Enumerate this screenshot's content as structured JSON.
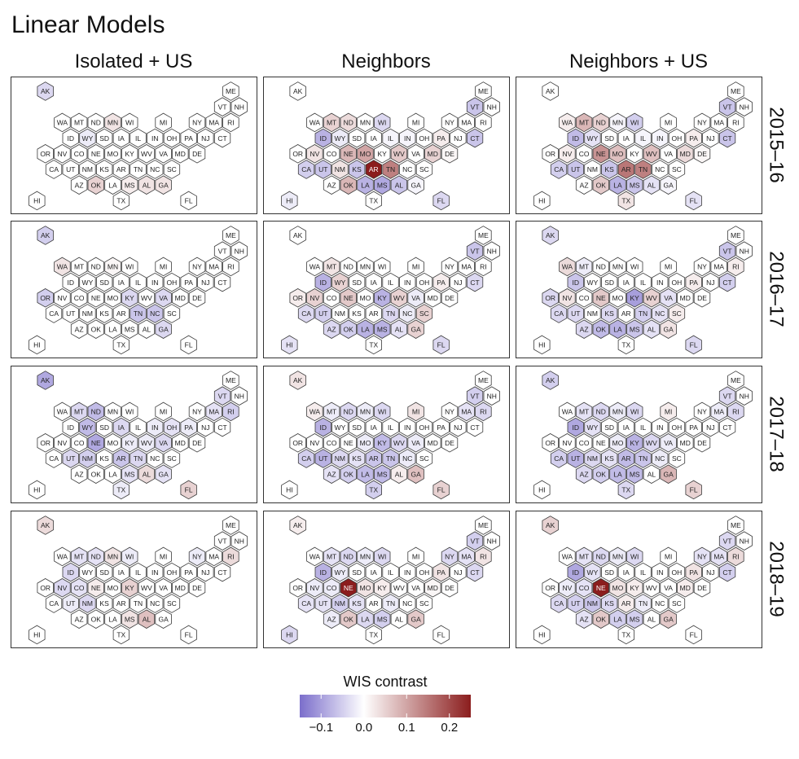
{
  "chart_data": {
    "type": "heatmap",
    "subtype": "hexagonal tile grid map of US states, faceted",
    "title": "Linear Models",
    "columns": [
      "Isolated + US",
      "Neighbors",
      "Neighbors + US"
    ],
    "rows": [
      "2015–16",
      "2016–17",
      "2017–18",
      "2018–19"
    ],
    "legend": {
      "title": "WIS contrast",
      "range": [
        -0.15,
        0.25
      ],
      "ticks": [
        -0.1,
        0.0,
        0.1,
        0.2
      ],
      "tick_labels": [
        "−0.1",
        "0.0",
        "0.1",
        "0.2"
      ],
      "low_color": "#7b6ecb",
      "mid_color": "#ffffff",
      "high_color": "#8b1d1d",
      "placement": "bottom-center"
    },
    "states": [
      "AK",
      "ME",
      "VT",
      "NH",
      "WA",
      "MT",
      "ND",
      "MN",
      "WI",
      "MI",
      "NY",
      "MA",
      "RI",
      "ID",
      "WY",
      "SD",
      "IA",
      "IL",
      "IN",
      "OH",
      "PA",
      "NJ",
      "CT",
      "OR",
      "NV",
      "CO",
      "NE",
      "MO",
      "KY",
      "WV",
      "VA",
      "MD",
      "DE",
      "CA",
      "UT",
      "NM",
      "KS",
      "AR",
      "TN",
      "NC",
      "SC",
      "AZ",
      "OK",
      "LA",
      "MS",
      "AL",
      "GA",
      "HI",
      "TX",
      "FL"
    ],
    "panels": [
      {
        "season": "2015–16",
        "model": "Isolated + US",
        "values": {
          "AK": -0.04,
          "ME": 0,
          "VT": 0,
          "NH": 0,
          "WA": 0,
          "MT": 0,
          "ND": 0,
          "MN": 0.03,
          "WI": 0,
          "MI": 0,
          "NY": 0,
          "MA": 0,
          "RI": 0,
          "ID": 0,
          "WY": -0.02,
          "SD": 0,
          "IA": 0,
          "IL": 0,
          "IN": 0,
          "OH": 0,
          "PA": 0,
          "NJ": 0,
          "CT": 0,
          "OR": 0,
          "NV": 0,
          "CO": 0,
          "NE": 0,
          "MO": 0,
          "KY": 0,
          "WV": 0,
          "VA": 0,
          "MD": 0,
          "DE": 0,
          "CA": 0,
          "UT": 0,
          "NM": 0,
          "KS": 0,
          "AR": 0,
          "TN": 0,
          "NC": 0,
          "SC": 0,
          "AZ": 0,
          "OK": 0.05,
          "LA": 0,
          "MS": 0.02,
          "AL": 0.03,
          "GA": 0.03,
          "HI": 0,
          "TX": 0,
          "FL": 0
        }
      },
      {
        "season": "2015–16",
        "model": "Neighbors",
        "values": {
          "AK": 0,
          "ME": 0,
          "VT": -0.06,
          "NH": 0,
          "WA": 0,
          "MT": 0.05,
          "ND": 0.04,
          "MN": 0,
          "WI": -0.04,
          "MI": 0,
          "NY": 0,
          "MA": 0,
          "RI": 0,
          "ID": -0.08,
          "WY": -0.02,
          "SD": 0,
          "IA": 0,
          "IL": -0.01,
          "IN": -0.01,
          "OH": 0,
          "PA": 0.02,
          "NJ": 0,
          "CT": -0.06,
          "OR": 0,
          "NV": 0.03,
          "CO": 0,
          "NE": 0.08,
          "MO": 0.1,
          "KY": 0,
          "WV": 0.06,
          "VA": 0,
          "MD": 0.05,
          "DE": 0.01,
          "CA": -0.05,
          "UT": -0.06,
          "NM": 0.03,
          "KS": -0.06,
          "AR": 0.25,
          "TN": 0.14,
          "NC": 0,
          "SC": 0,
          "AZ": 0,
          "OK": 0.08,
          "LA": -0.08,
          "MS": -0.09,
          "AL": -0.06,
          "GA": -0.01,
          "HI": -0.02,
          "TX": 0,
          "FL": -0.04
        }
      },
      {
        "season": "2015–16",
        "model": "Neighbors + US",
        "values": {
          "AK": 0,
          "ME": 0,
          "VT": -0.06,
          "NH": 0,
          "WA": 0.02,
          "MT": 0.08,
          "ND": 0.05,
          "MN": -0.01,
          "WI": -0.05,
          "MI": 0,
          "NY": 0,
          "MA": 0,
          "RI": 0,
          "ID": -0.07,
          "WY": -0.03,
          "SD": 0,
          "IA": 0,
          "IL": -0.01,
          "IN": -0.01,
          "OH": 0,
          "PA": 0.02,
          "NJ": 0,
          "CT": -0.06,
          "OR": 0,
          "NV": 0.02,
          "CO": 0,
          "NE": 0.12,
          "MO": 0.07,
          "KY": 0,
          "WV": 0.07,
          "VA": 0,
          "MD": 0.04,
          "DE": 0.01,
          "CA": -0.05,
          "UT": -0.06,
          "NM": 0,
          "KS": -0.06,
          "AR": 0.15,
          "TN": 0.14,
          "NC": 0,
          "SC": 0,
          "AZ": 0,
          "OK": 0.06,
          "LA": -0.08,
          "MS": -0.06,
          "AL": -0.03,
          "GA": -0.01,
          "HI": 0,
          "TX": 0.03,
          "FL": -0.03
        }
      },
      {
        "season": "2016–17",
        "model": "Isolated + US",
        "values": {
          "AK": -0.05,
          "ME": 0,
          "VT": 0,
          "NH": 0,
          "WA": 0.03,
          "MT": 0,
          "ND": 0,
          "MN": 0.01,
          "WI": 0,
          "MI": 0,
          "NY": 0,
          "MA": 0,
          "RI": 0,
          "ID": 0,
          "WY": 0,
          "SD": 0,
          "IA": 0,
          "IL": 0,
          "IN": 0,
          "OH": 0,
          "PA": 0,
          "NJ": 0,
          "CT": 0,
          "OR": -0.05,
          "NV": 0,
          "CO": 0,
          "NE": 0,
          "MO": 0,
          "KY": -0.04,
          "WV": 0,
          "VA": -0.04,
          "MD": 0,
          "DE": 0,
          "CA": 0,
          "UT": 0,
          "NM": 0,
          "KS": 0,
          "AR": 0,
          "TN": -0.06,
          "NC": -0.06,
          "SC": 0,
          "AZ": 0,
          "OK": 0,
          "LA": 0,
          "MS": 0,
          "AL": 0,
          "GA": -0.04,
          "HI": 0,
          "TX": 0,
          "FL": 0
        }
      },
      {
        "season": "2016–17",
        "model": "Neighbors",
        "values": {
          "AK": 0,
          "ME": 0,
          "VT": -0.06,
          "NH": 0,
          "WA": 0,
          "MT": 0.03,
          "ND": 0,
          "MN": 0,
          "WI": 0,
          "MI": 0,
          "NY": 0,
          "MA": 0,
          "RI": 0,
          "ID": -0.08,
          "WY": 0.05,
          "SD": 0,
          "IA": 0,
          "IL": 0,
          "IN": 0,
          "OH": 0,
          "PA": 0.02,
          "NJ": 0,
          "CT": -0.04,
          "OR": 0.02,
          "NV": 0.05,
          "CO": 0,
          "NE": 0.06,
          "MO": 0,
          "KY": -0.08,
          "WV": 0.05,
          "VA": -0.02,
          "MD": 0,
          "DE": 0,
          "CA": -0.04,
          "UT": -0.05,
          "NM": 0,
          "KS": 0,
          "AR": 0,
          "TN": -0.04,
          "NC": -0.02,
          "SC": 0.05,
          "AZ": -0.04,
          "OK": -0.05,
          "LA": -0.08,
          "MS": -0.08,
          "AL": -0.03,
          "GA": 0.05,
          "HI": -0.03,
          "TX": 0,
          "FL": -0.04
        }
      },
      {
        "season": "2016–17",
        "model": "Neighbors + US",
        "values": {
          "AK": -0.04,
          "ME": 0,
          "VT": -0.06,
          "NH": 0,
          "WA": 0.04,
          "MT": -0.02,
          "ND": 0,
          "MN": 0,
          "WI": 0,
          "MI": 0,
          "NY": 0,
          "MA": 0,
          "RI": 0.02,
          "ID": -0.06,
          "WY": 0,
          "SD": 0,
          "IA": 0,
          "IL": 0,
          "IN": 0,
          "OH": 0,
          "PA": 0.02,
          "NJ": 0,
          "CT": -0.05,
          "OR": -0.04,
          "NV": 0.03,
          "CO": 0,
          "NE": 0.06,
          "MO": 0,
          "KY": -0.1,
          "WV": 0.05,
          "VA": -0.03,
          "MD": 0,
          "DE": 0,
          "CA": -0.04,
          "UT": -0.04,
          "NM": 0,
          "KS": -0.04,
          "AR": 0,
          "TN": -0.05,
          "NC": -0.03,
          "SC": 0.02,
          "AZ": -0.04,
          "OK": -0.07,
          "LA": -0.08,
          "MS": -0.06,
          "AL": -0.03,
          "GA": 0.03,
          "HI": 0,
          "TX": 0,
          "FL": -0.04
        }
      },
      {
        "season": "2017–18",
        "model": "Isolated + US",
        "values": {
          "AK": -0.09,
          "ME": 0,
          "VT": -0.04,
          "NH": 0,
          "WA": 0,
          "MT": -0.04,
          "ND": -0.07,
          "MN": 0,
          "WI": 0,
          "MI": 0,
          "NY": 0,
          "MA": -0.03,
          "RI": -0.05,
          "ID": 0,
          "WY": -0.07,
          "SD": 0,
          "IA": -0.04,
          "IL": 0,
          "IN": -0.02,
          "OH": -0.03,
          "PA": -0.02,
          "NJ": 0,
          "CT": 0,
          "OR": 0,
          "NV": 0,
          "CO": 0,
          "NE": -0.09,
          "MO": 0,
          "KY": -0.02,
          "WV": -0.02,
          "VA": -0.04,
          "MD": 0,
          "DE": 0,
          "CA": 0,
          "UT": -0.04,
          "NM": -0.05,
          "KS": 0,
          "AR": -0.06,
          "TN": -0.04,
          "NC": 0,
          "SC": 0,
          "AZ": 0,
          "OK": 0,
          "LA": 0,
          "MS": -0.03,
          "AL": 0.04,
          "GA": -0.03,
          "HI": 0,
          "TX": -0.02,
          "FL": 0.05
        }
      },
      {
        "season": "2017–18",
        "model": "Neighbors",
        "values": {
          "AK": 0.03,
          "ME": 0,
          "VT": -0.05,
          "NH": 0,
          "WA": 0.02,
          "MT": -0.02,
          "ND": -0.04,
          "MN": -0.02,
          "WI": -0.04,
          "MI": 0.03,
          "NY": 0,
          "MA": -0.03,
          "RI": -0.04,
          "ID": -0.08,
          "WY": 0,
          "SD": 0,
          "IA": 0,
          "IL": 0,
          "IN": 0,
          "OH": 0,
          "PA": 0,
          "NJ": 0,
          "CT": 0,
          "OR": 0,
          "NV": 0,
          "CO": 0,
          "NE": 0,
          "MO": -0.02,
          "KY": -0.07,
          "WV": -0.04,
          "VA": -0.02,
          "MD": 0,
          "DE": 0,
          "CA": -0.05,
          "UT": -0.08,
          "NM": -0.04,
          "KS": -0.03,
          "AR": -0.06,
          "TN": -0.06,
          "NC": -0.02,
          "SC": 0,
          "AZ": -0.03,
          "OK": -0.05,
          "LA": -0.07,
          "MS": -0.07,
          "AL": 0.02,
          "GA": 0.07,
          "HI": 0,
          "TX": -0.05,
          "FL": 0.05
        }
      },
      {
        "season": "2017–18",
        "model": "Neighbors + US",
        "values": {
          "AK": -0.05,
          "ME": 0,
          "VT": -0.04,
          "NH": 0,
          "WA": 0,
          "MT": -0.03,
          "ND": -0.04,
          "MN": -0.02,
          "WI": -0.04,
          "MI": 0.02,
          "NY": 0,
          "MA": -0.02,
          "RI": -0.04,
          "ID": -0.09,
          "WY": -0.03,
          "SD": 0,
          "IA": 0,
          "IL": 0,
          "IN": 0,
          "OH": 0,
          "PA": 0,
          "NJ": 0,
          "CT": 0,
          "OR": 0,
          "NV": 0,
          "CO": 0,
          "NE": 0,
          "MO": -0.02,
          "KY": -0.08,
          "WV": -0.04,
          "VA": -0.02,
          "MD": 0,
          "DE": 0,
          "CA": -0.05,
          "UT": -0.08,
          "NM": -0.04,
          "KS": -0.03,
          "AR": -0.07,
          "TN": -0.06,
          "NC": -0.02,
          "SC": 0,
          "AZ": -0.04,
          "OK": -0.05,
          "LA": -0.07,
          "MS": -0.07,
          "AL": 0,
          "GA": 0.08,
          "HI": 0,
          "TX": -0.04,
          "FL": 0.05
        }
      },
      {
        "season": "2018–19",
        "model": "Isolated + US",
        "values": {
          "AK": 0.04,
          "ME": 0,
          "VT": 0,
          "NH": 0,
          "WA": 0,
          "MT": -0.03,
          "ND": -0.03,
          "MN": 0.03,
          "WI": -0.02,
          "MI": 0,
          "NY": -0.02,
          "MA": 0,
          "RI": 0.04,
          "ID": -0.04,
          "WY": 0,
          "SD": 0,
          "IA": 0,
          "IL": 0,
          "IN": 0,
          "OH": 0,
          "PA": 0,
          "NJ": 0,
          "CT": 0,
          "OR": 0,
          "NV": -0.04,
          "CO": -0.03,
          "NE": 0.02,
          "MO": 0,
          "KY": 0.05,
          "WV": 0,
          "VA": 0,
          "MD": 0,
          "DE": 0,
          "CA": 0,
          "UT": -0.02,
          "NM": -0.04,
          "KS": 0,
          "AR": 0,
          "TN": 0,
          "NC": 0,
          "SC": 0,
          "AZ": 0,
          "OK": 0,
          "LA": 0,
          "MS": 0.03,
          "AL": 0.07,
          "GA": 0,
          "HI": 0,
          "TX": 0,
          "FL": 0
        }
      },
      {
        "season": "2018–19",
        "model": "Neighbors",
        "values": {
          "AK": 0.02,
          "ME": 0,
          "VT": -0.05,
          "NH": 0,
          "WA": 0,
          "MT": -0.03,
          "ND": -0.04,
          "MN": -0.02,
          "WI": -0.04,
          "MI": 0,
          "NY": -0.04,
          "MA": -0.03,
          "RI": 0.03,
          "ID": -0.08,
          "WY": -0.02,
          "SD": 0,
          "IA": 0,
          "IL": 0,
          "IN": 0,
          "OH": 0,
          "PA": 0.03,
          "NJ": 0,
          "CT": -0.04,
          "OR": 0,
          "NV": -0.02,
          "CO": -0.02,
          "NE": 0.25,
          "MO": 0.03,
          "KY": 0.02,
          "WV": 0,
          "VA": 0,
          "MD": 0.01,
          "DE": 0,
          "CA": -0.03,
          "UT": -0.03,
          "NM": -0.05,
          "KS": -0.03,
          "AR": 0,
          "TN": -0.02,
          "NC": 0,
          "SC": 0,
          "AZ": -0.02,
          "OK": 0.06,
          "LA": -0.04,
          "MS": -0.05,
          "AL": 0,
          "GA": 0.06,
          "HI": -0.04,
          "TX": 0,
          "FL": 0
        }
      },
      {
        "season": "2018–19",
        "model": "Neighbors + US",
        "values": {
          "AK": 0.05,
          "ME": 0,
          "VT": -0.04,
          "NH": 0,
          "WA": 0,
          "MT": -0.03,
          "ND": -0.04,
          "MN": -0.02,
          "WI": -0.04,
          "MI": 0,
          "NY": -0.03,
          "MA": -0.03,
          "RI": 0.04,
          "ID": -0.09,
          "WY": -0.03,
          "SD": 0,
          "IA": 0,
          "IL": 0,
          "IN": 0,
          "OH": 0,
          "PA": 0.03,
          "NJ": 0,
          "CT": -0.05,
          "OR": 0,
          "NV": -0.02,
          "CO": -0.03,
          "NE": 0.25,
          "MO": 0.03,
          "KY": 0.02,
          "WV": 0,
          "VA": 0,
          "MD": 0.02,
          "DE": 0,
          "CA": -0.04,
          "UT": -0.05,
          "NM": -0.06,
          "KS": -0.04,
          "AR": 0.02,
          "TN": -0.02,
          "NC": 0,
          "SC": 0,
          "AZ": -0.03,
          "OK": 0.06,
          "LA": -0.05,
          "MS": -0.05,
          "AL": 0,
          "GA": 0.06,
          "HI": 0,
          "TX": 0,
          "FL": 0
        }
      }
    ]
  }
}
